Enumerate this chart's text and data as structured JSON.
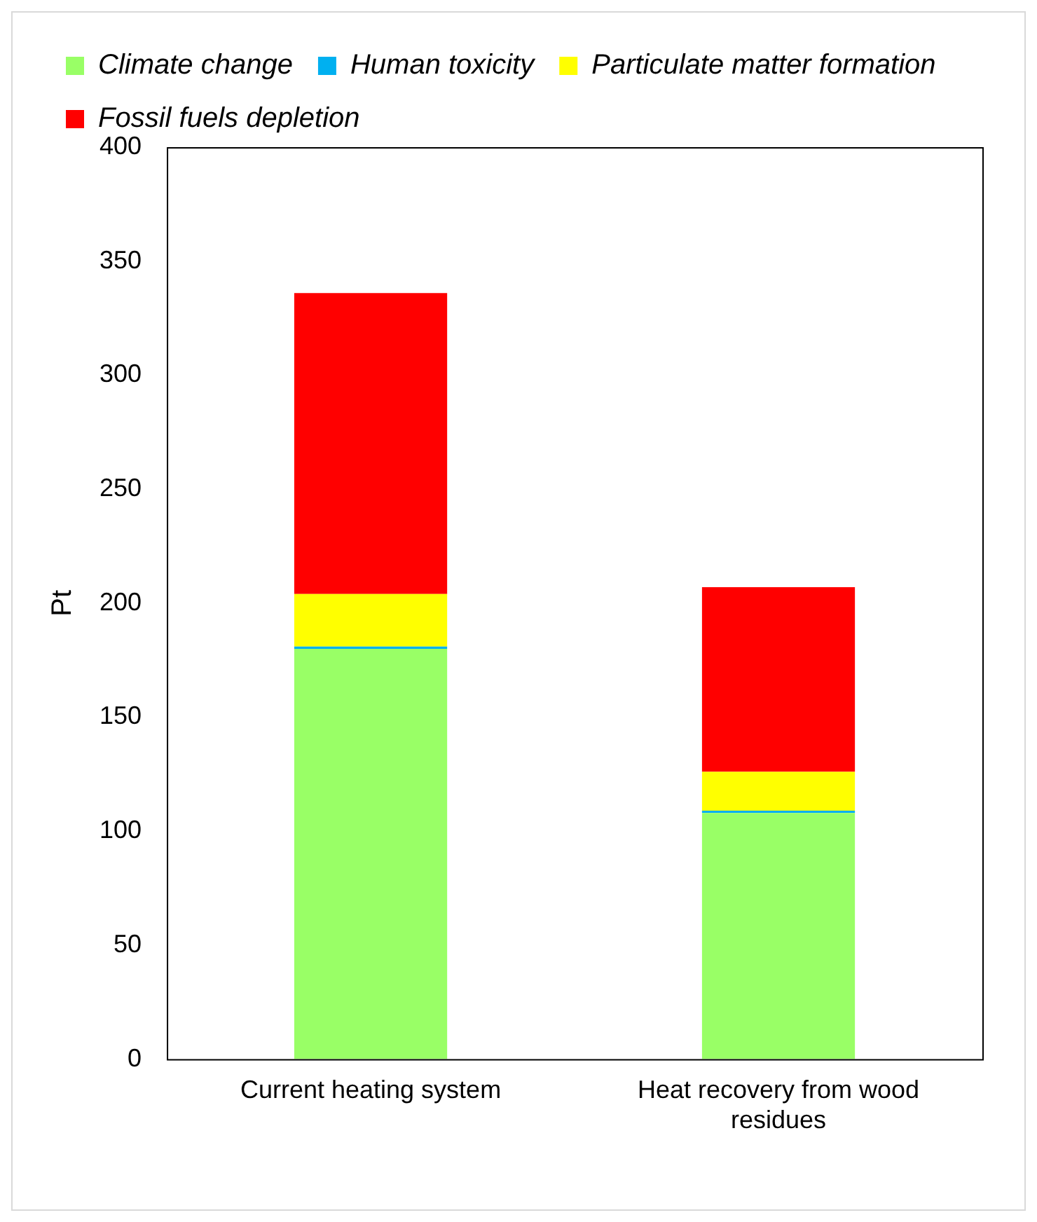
{
  "chart_data": {
    "type": "bar",
    "stacked": true,
    "ylabel": "Pt",
    "categories": [
      "Current heating system",
      "Heat recovery from wood residues"
    ],
    "series": [
      {
        "name": "Climate change",
        "color": "#99ff66",
        "values": [
          180,
          108
        ]
      },
      {
        "name": "Human toxicity",
        "color": "#00b0f0",
        "values": [
          1,
          1
        ]
      },
      {
        "name": "Particulate matter formation",
        "color": "#ffff00",
        "values": [
          23,
          17
        ]
      },
      {
        "name": "Fossil fuels depletion",
        "color": "#ff0000",
        "values": [
          132,
          81
        ]
      }
    ],
    "ylim": [
      0,
      400
    ],
    "yticks": [
      0,
      50,
      100,
      150,
      200,
      250,
      300,
      350,
      400
    ],
    "grid": false,
    "legend": "top"
  }
}
